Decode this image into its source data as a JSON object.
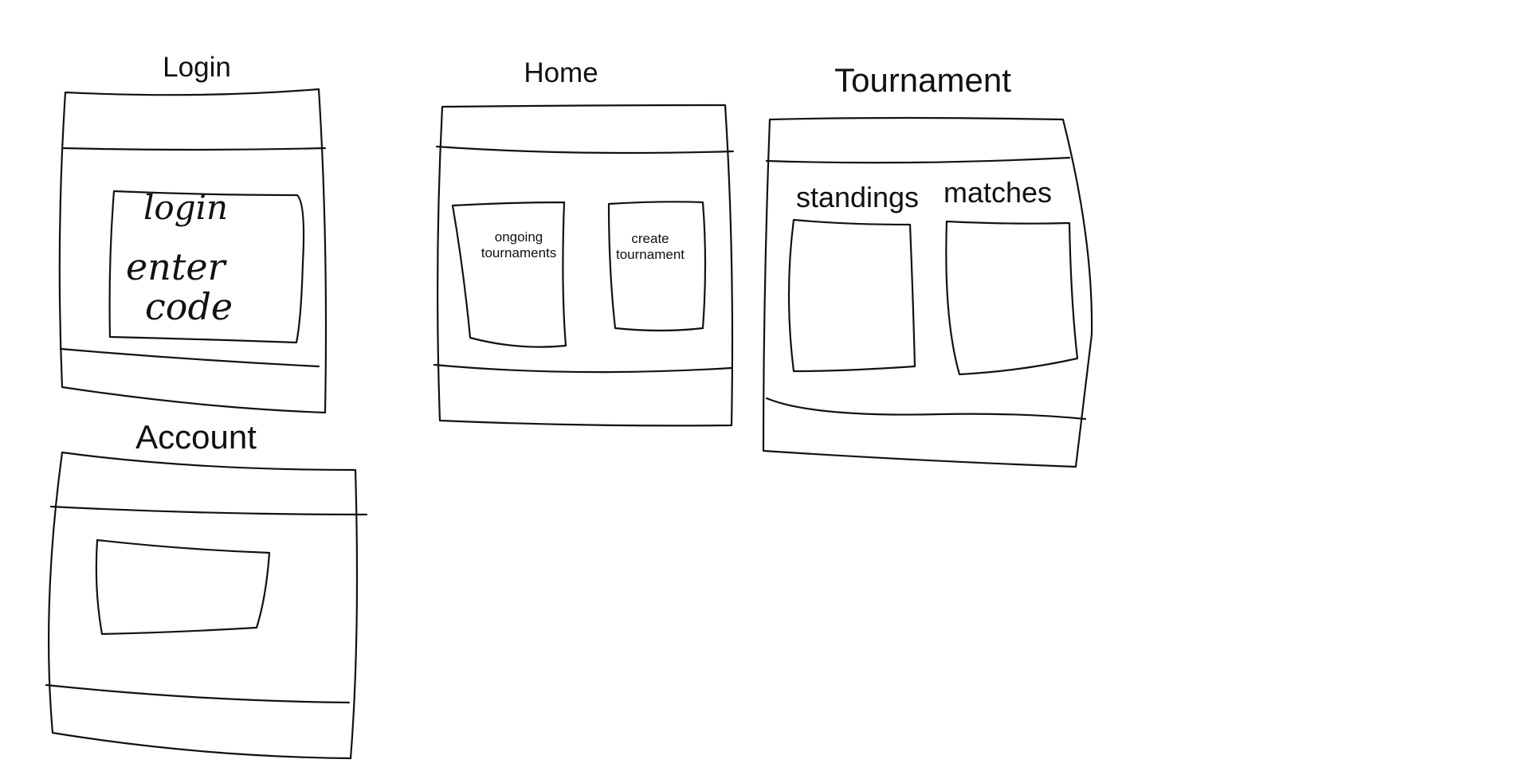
{
  "screens": {
    "login": {
      "title": "Login",
      "card_text_line1": "login",
      "card_text_line2": "enter",
      "card_text_line3": "code"
    },
    "home": {
      "title": "Home",
      "ongoing_card": "ongoing\ntournaments",
      "create_card": "create\ntournament"
    },
    "tournament": {
      "title": "Tournament",
      "standings": "standings",
      "matches": "matches"
    },
    "account": {
      "title": "Account"
    }
  }
}
